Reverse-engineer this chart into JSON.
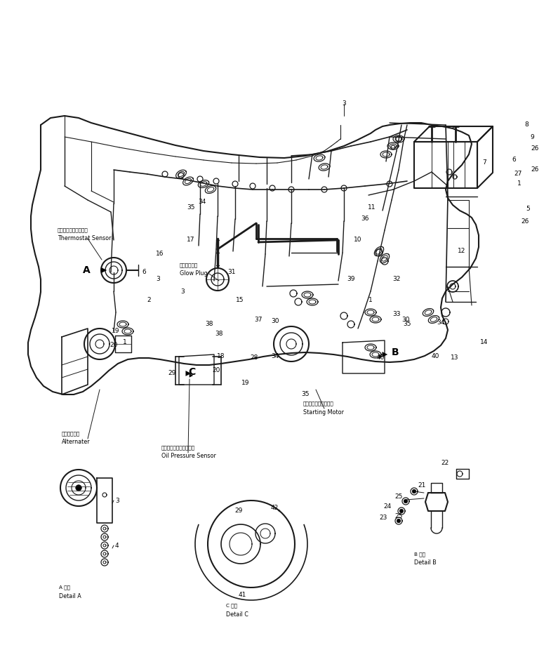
{
  "bg_color": "#ffffff",
  "line_color": "#1a1a1a",
  "figsize": [
    7.95,
    9.26
  ],
  "dpi": 100,
  "labels": {
    "thermostat_jp": "サーモスタットセンサ",
    "thermostat_en": "Thermostat Sensor",
    "glow_jp": "グロープラグ",
    "glow_en": "Glow Plug",
    "alternator_jp": "オルタネータ",
    "alternator_en": "Alternater",
    "oil_press_jp": "オイルプレッシャセンサ",
    "oil_press_en": "Oil Pressure Sensor",
    "starting_jp": "スターティングモータ",
    "starting_en": "Starting Motor",
    "detail_a_jp": "A 詳細",
    "detail_a_en": "Detail A",
    "detail_b_jp": "B 詳細",
    "detail_b_en": "Detail B",
    "detail_c_jp": "C 詳細",
    "detail_c_en": "Detail C"
  }
}
